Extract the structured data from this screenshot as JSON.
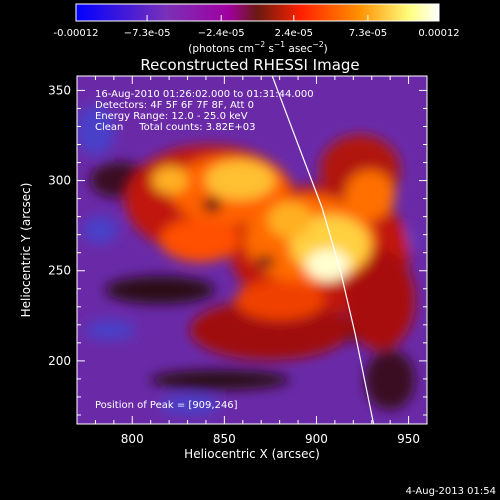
{
  "chart_data": {
    "type": "heatmap",
    "title": "Reconstructed RHESSI Image",
    "xlabel": "Heliocentric X (arcsec)",
    "ylabel": "Heliocentric Y (arcsec)",
    "xlim": [
      770,
      960
    ],
    "ylim": [
      165,
      358
    ],
    "xticks": [
      800,
      850,
      900,
      950
    ],
    "yticks": [
      200,
      250,
      300,
      350
    ],
    "colorbar": {
      "min": -0.00012,
      "max": 0.00012,
      "tick_labels": [
        "-0.00012",
        "−7.3e-05",
        "−2.4e-05",
        "2.4e-05",
        "7.3e-05",
        "0.00012"
      ],
      "tick_values": [
        -0.00012,
        -7.3e-05,
        -2.4e-05,
        2.4e-05,
        7.3e-05,
        0.00012
      ],
      "unit_prefix": "(photons cm",
      "unit_mid": " s",
      "unit_mid2": " asec",
      "unit_close": ")",
      "sup_minus2": "−2",
      "sup_minus1": "−1",
      "colors": [
        "#0000ff",
        "#7a30b8",
        "#a000a0",
        "#7a2a10",
        "#ff2000",
        "#ff9000",
        "#ffff80",
        "#ffffff"
      ]
    },
    "annotations": [
      "16-Aug-2010 01:26:02.000 to 01:31:44.000",
      "Detectors: 4F 5F 6F 7F 8F, Att 0",
      "Energy Range: 12.0 - 25.0 keV",
      "Clean     Total counts: 3.82E+03"
    ],
    "peak_label": "Position of Peak = [909,246]",
    "peak": [
      909,
      246
    ],
    "limb_curve": [
      [
        876,
        358
      ],
      [
        890,
        320
      ],
      [
        903,
        285
      ],
      [
        913,
        250
      ],
      [
        921,
        215
      ],
      [
        927,
        185
      ],
      [
        931,
        165
      ]
    ],
    "footer_date": "4-Aug-2013 01:54"
  }
}
